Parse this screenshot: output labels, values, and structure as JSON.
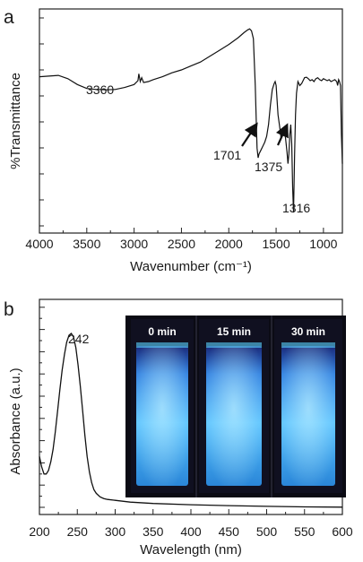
{
  "chart_data": [
    {
      "panel_label": "a",
      "type": "line",
      "xlabel": "Wavenumber (cm⁻¹)",
      "ylabel": "%Transmittance",
      "xlim": [
        4000,
        800
      ],
      "x_ticks": [
        "4000",
        "3500",
        "3000",
        "2500",
        "2000",
        "1500",
        "1000"
      ],
      "annotations": [
        {
          "text": "3360",
          "x": 3360
        },
        {
          "text": "1701",
          "x": 1701
        },
        {
          "text": "1375",
          "x": 1375
        },
        {
          "text": "1316",
          "x": 1316
        }
      ],
      "series": [
        {
          "x": [
            4000,
            3900,
            3800,
            3700,
            3600,
            3500,
            3400,
            3360,
            3300,
            3200,
            3100,
            3000,
            2960,
            2950,
            2935,
            2920,
            2900,
            2850,
            2800,
            2700,
            2600,
            2500,
            2400,
            2300,
            2200,
            2100,
            2000,
            1900,
            1840,
            1800,
            1780,
            1760,
            1740,
            1720,
            1710,
            1701,
            1690,
            1680,
            1660,
            1640,
            1620,
            1600,
            1580,
            1560,
            1540,
            1520,
            1510,
            1500,
            1480,
            1460,
            1450,
            1440,
            1420,
            1410,
            1400,
            1385,
            1375,
            1365,
            1355,
            1345,
            1335,
            1325,
            1316,
            1305,
            1295,
            1285,
            1270,
            1250,
            1230,
            1210,
            1200,
            1180,
            1160,
            1140,
            1120,
            1100,
            1080,
            1060,
            1040,
            1020,
            1000,
            980,
            960,
            940,
            920,
            900,
            880,
            860,
            850,
            840,
            830,
            820,
            810,
            800
          ],
          "y": [
            0.745,
            0.748,
            0.752,
            0.735,
            0.705,
            0.685,
            0.68,
            0.68,
            0.678,
            0.68,
            0.69,
            0.705,
            0.725,
            0.76,
            0.72,
            0.74,
            0.715,
            0.72,
            0.73,
            0.745,
            0.765,
            0.78,
            0.8,
            0.82,
            0.85,
            0.88,
            0.91,
            0.945,
            0.97,
            0.985,
            0.99,
            0.98,
            0.94,
            0.7,
            0.52,
            0.38,
            0.33,
            0.35,
            0.37,
            0.39,
            0.41,
            0.44,
            0.5,
            0.6,
            0.68,
            0.71,
            0.72,
            0.7,
            0.55,
            0.48,
            0.44,
            0.45,
            0.47,
            0.46,
            0.43,
            0.36,
            0.3,
            0.35,
            0.45,
            0.5,
            0.4,
            0.18,
            0.05,
            0.35,
            0.55,
            0.66,
            0.72,
            0.7,
            0.71,
            0.73,
            0.74,
            0.742,
            0.735,
            0.725,
            0.73,
            0.72,
            0.735,
            0.74,
            0.73,
            0.725,
            0.735,
            0.73,
            0.725,
            0.73,
            0.72,
            0.725,
            0.73,
            0.72,
            0.7,
            0.73,
            0.72,
            0.7,
            0.45,
            0.3
          ]
        }
      ]
    },
    {
      "panel_label": "b",
      "type": "line",
      "xlabel": "Wavelength (nm)",
      "ylabel": "Absorbance (a.u.)",
      "xlim": [
        200,
        600
      ],
      "x_ticks": [
        "200",
        "250",
        "300",
        "350",
        "400",
        "450",
        "500",
        "550",
        "600"
      ],
      "annotations": [
        {
          "text": "242",
          "x": 242
        }
      ],
      "inset_labels": [
        "0 min",
        "15 min",
        "30 min"
      ],
      "series": [
        {
          "x": [
            200,
            203,
            206,
            209,
            212,
            215,
            218,
            221,
            224,
            227,
            230,
            233,
            236,
            239,
            242,
            245,
            248,
            251,
            254,
            257,
            260,
            263,
            266,
            269,
            272,
            275,
            280,
            285,
            290,
            300,
            310,
            320,
            330,
            350,
            400,
            450,
            500,
            550,
            600
          ],
          "y": [
            0.3,
            0.24,
            0.2,
            0.2,
            0.22,
            0.27,
            0.34,
            0.44,
            0.56,
            0.68,
            0.79,
            0.88,
            0.95,
            0.99,
            1.0,
            0.98,
            0.92,
            0.82,
            0.7,
            0.56,
            0.42,
            0.3,
            0.21,
            0.15,
            0.11,
            0.09,
            0.07,
            0.06,
            0.055,
            0.05,
            0.045,
            0.04,
            0.037,
            0.032,
            0.025,
            0.02,
            0.016,
            0.013,
            0.011
          ]
        }
      ]
    }
  ]
}
